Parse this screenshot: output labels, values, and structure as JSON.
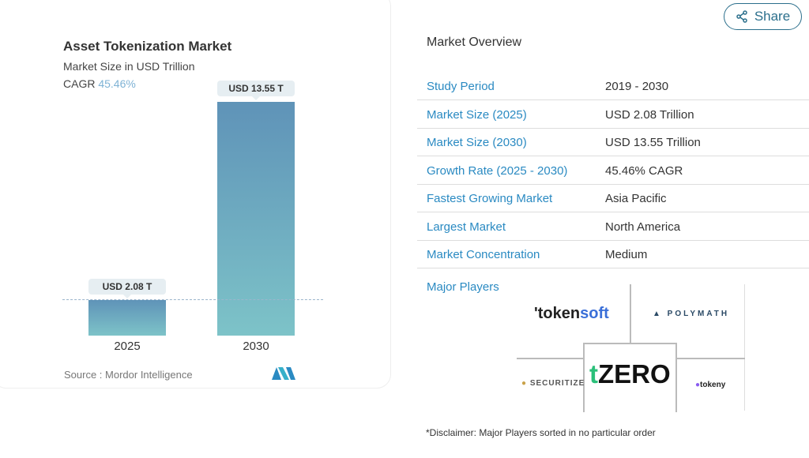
{
  "chart_card": {
    "title": "Asset Tokenization Market",
    "subtitle": "Market Size in USD Trillion",
    "cagr_label": "CAGR",
    "cagr_value": "45.46%",
    "source": "Source :  Mordor Intelligence"
  },
  "chart_data": {
    "type": "bar",
    "categories": [
      "2025",
      "2030"
    ],
    "values": [
      2.08,
      13.55
    ],
    "data_labels": [
      "USD 2.08 T",
      "USD 13.55 T"
    ],
    "title": "Asset Tokenization Market",
    "subtitle": "Market Size in USD Trillion",
    "grid": false,
    "colors": [
      "#5f93b8",
      "#7dc3c8"
    ]
  },
  "share": {
    "label": "Share",
    "icon": "share-icon"
  },
  "overview": {
    "title": "Market Overview",
    "rows": [
      {
        "label": "Study Period",
        "value": "2019 - 2030"
      },
      {
        "label": "Market Size (2025)",
        "value": "USD 2.08 Trillion"
      },
      {
        "label": "Market Size (2030)",
        "value": "USD 13.55 Trillion"
      },
      {
        "label": "Growth Rate (2025 - 2030)",
        "value": "45.46% CAGR"
      },
      {
        "label": "Fastest Growing Market",
        "value": "Asia Pacific"
      },
      {
        "label": "Largest Market",
        "value": "North America"
      },
      {
        "label": "Market Concentration",
        "value": "Medium"
      }
    ]
  },
  "players": {
    "title": "Major Players",
    "logos": [
      "tokensoft",
      "POLYMATH",
      "SECURITIZE",
      "tZERO",
      "tokeny"
    ]
  },
  "disclaimer": "*Disclaimer: Major Players sorted in no particular order"
}
